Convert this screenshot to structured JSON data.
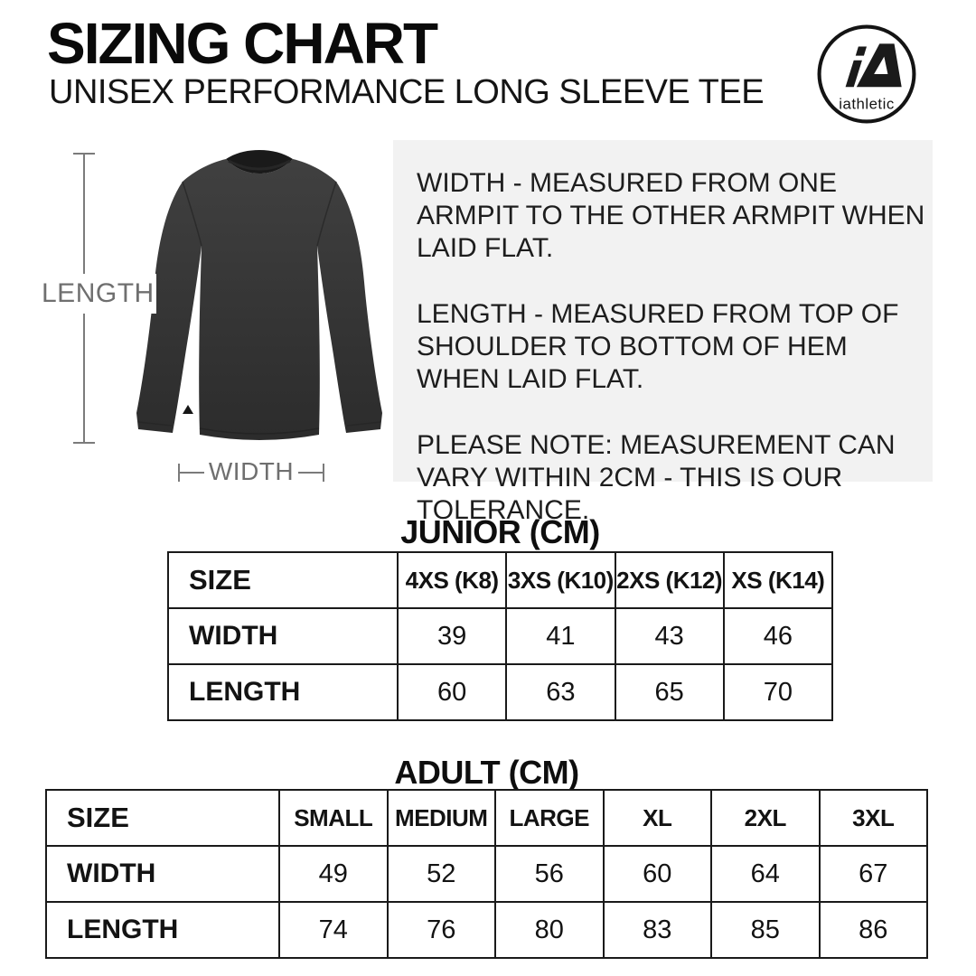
{
  "header": {
    "title": "SIZING CHART",
    "subtitle": "UNISEX PERFORMANCE LONG SLEEVE TEE",
    "logo_mark": "iA",
    "logo_text": "iathletic"
  },
  "diagram": {
    "length_label": "LENGTH",
    "width_label": "WIDTH"
  },
  "notes": {
    "paragraphs": [
      "WIDTH - MEASURED FROM ONE ARMPIT TO THE OTHER ARMPIT WHEN LAID FLAT.",
      "LENGTH - MEASURED FROM TOP OF SHOULDER TO BOTTOM OF HEM WHEN LAID FLAT.",
      "PLEASE NOTE: MEASUREMENT CAN VARY WITHIN 2CM - THIS IS OUR TOLERANCE."
    ]
  },
  "chart_data": [
    {
      "type": "table",
      "title": "JUNIOR (CM)",
      "unit": "cm",
      "columns": [
        "SIZE",
        "4XS (K8)",
        "3XS (K10)",
        "2XS (K12)",
        "XS (K14)"
      ],
      "rows": [
        [
          "WIDTH",
          39,
          41,
          43,
          46
        ],
        [
          "LENGTH",
          60,
          63,
          65,
          70
        ]
      ]
    },
    {
      "type": "table",
      "title": "ADULT (CM)",
      "unit": "cm",
      "columns": [
        "SIZE",
        "SMALL",
        "MEDIUM",
        "LARGE",
        "XL",
        "2XL",
        "3XL"
      ],
      "rows": [
        [
          "WIDTH",
          49,
          52,
          56,
          60,
          64,
          67
        ],
        [
          "LENGTH",
          74,
          76,
          80,
          83,
          85,
          86
        ]
      ]
    }
  ],
  "colors": {
    "background": "#ffffff",
    "notes_box": "#f2f2f2",
    "table_border": "#1a1a1a",
    "measure_gray": "#7b7b7b",
    "shirt_dark": "#353535",
    "text_black": "#111111"
  }
}
